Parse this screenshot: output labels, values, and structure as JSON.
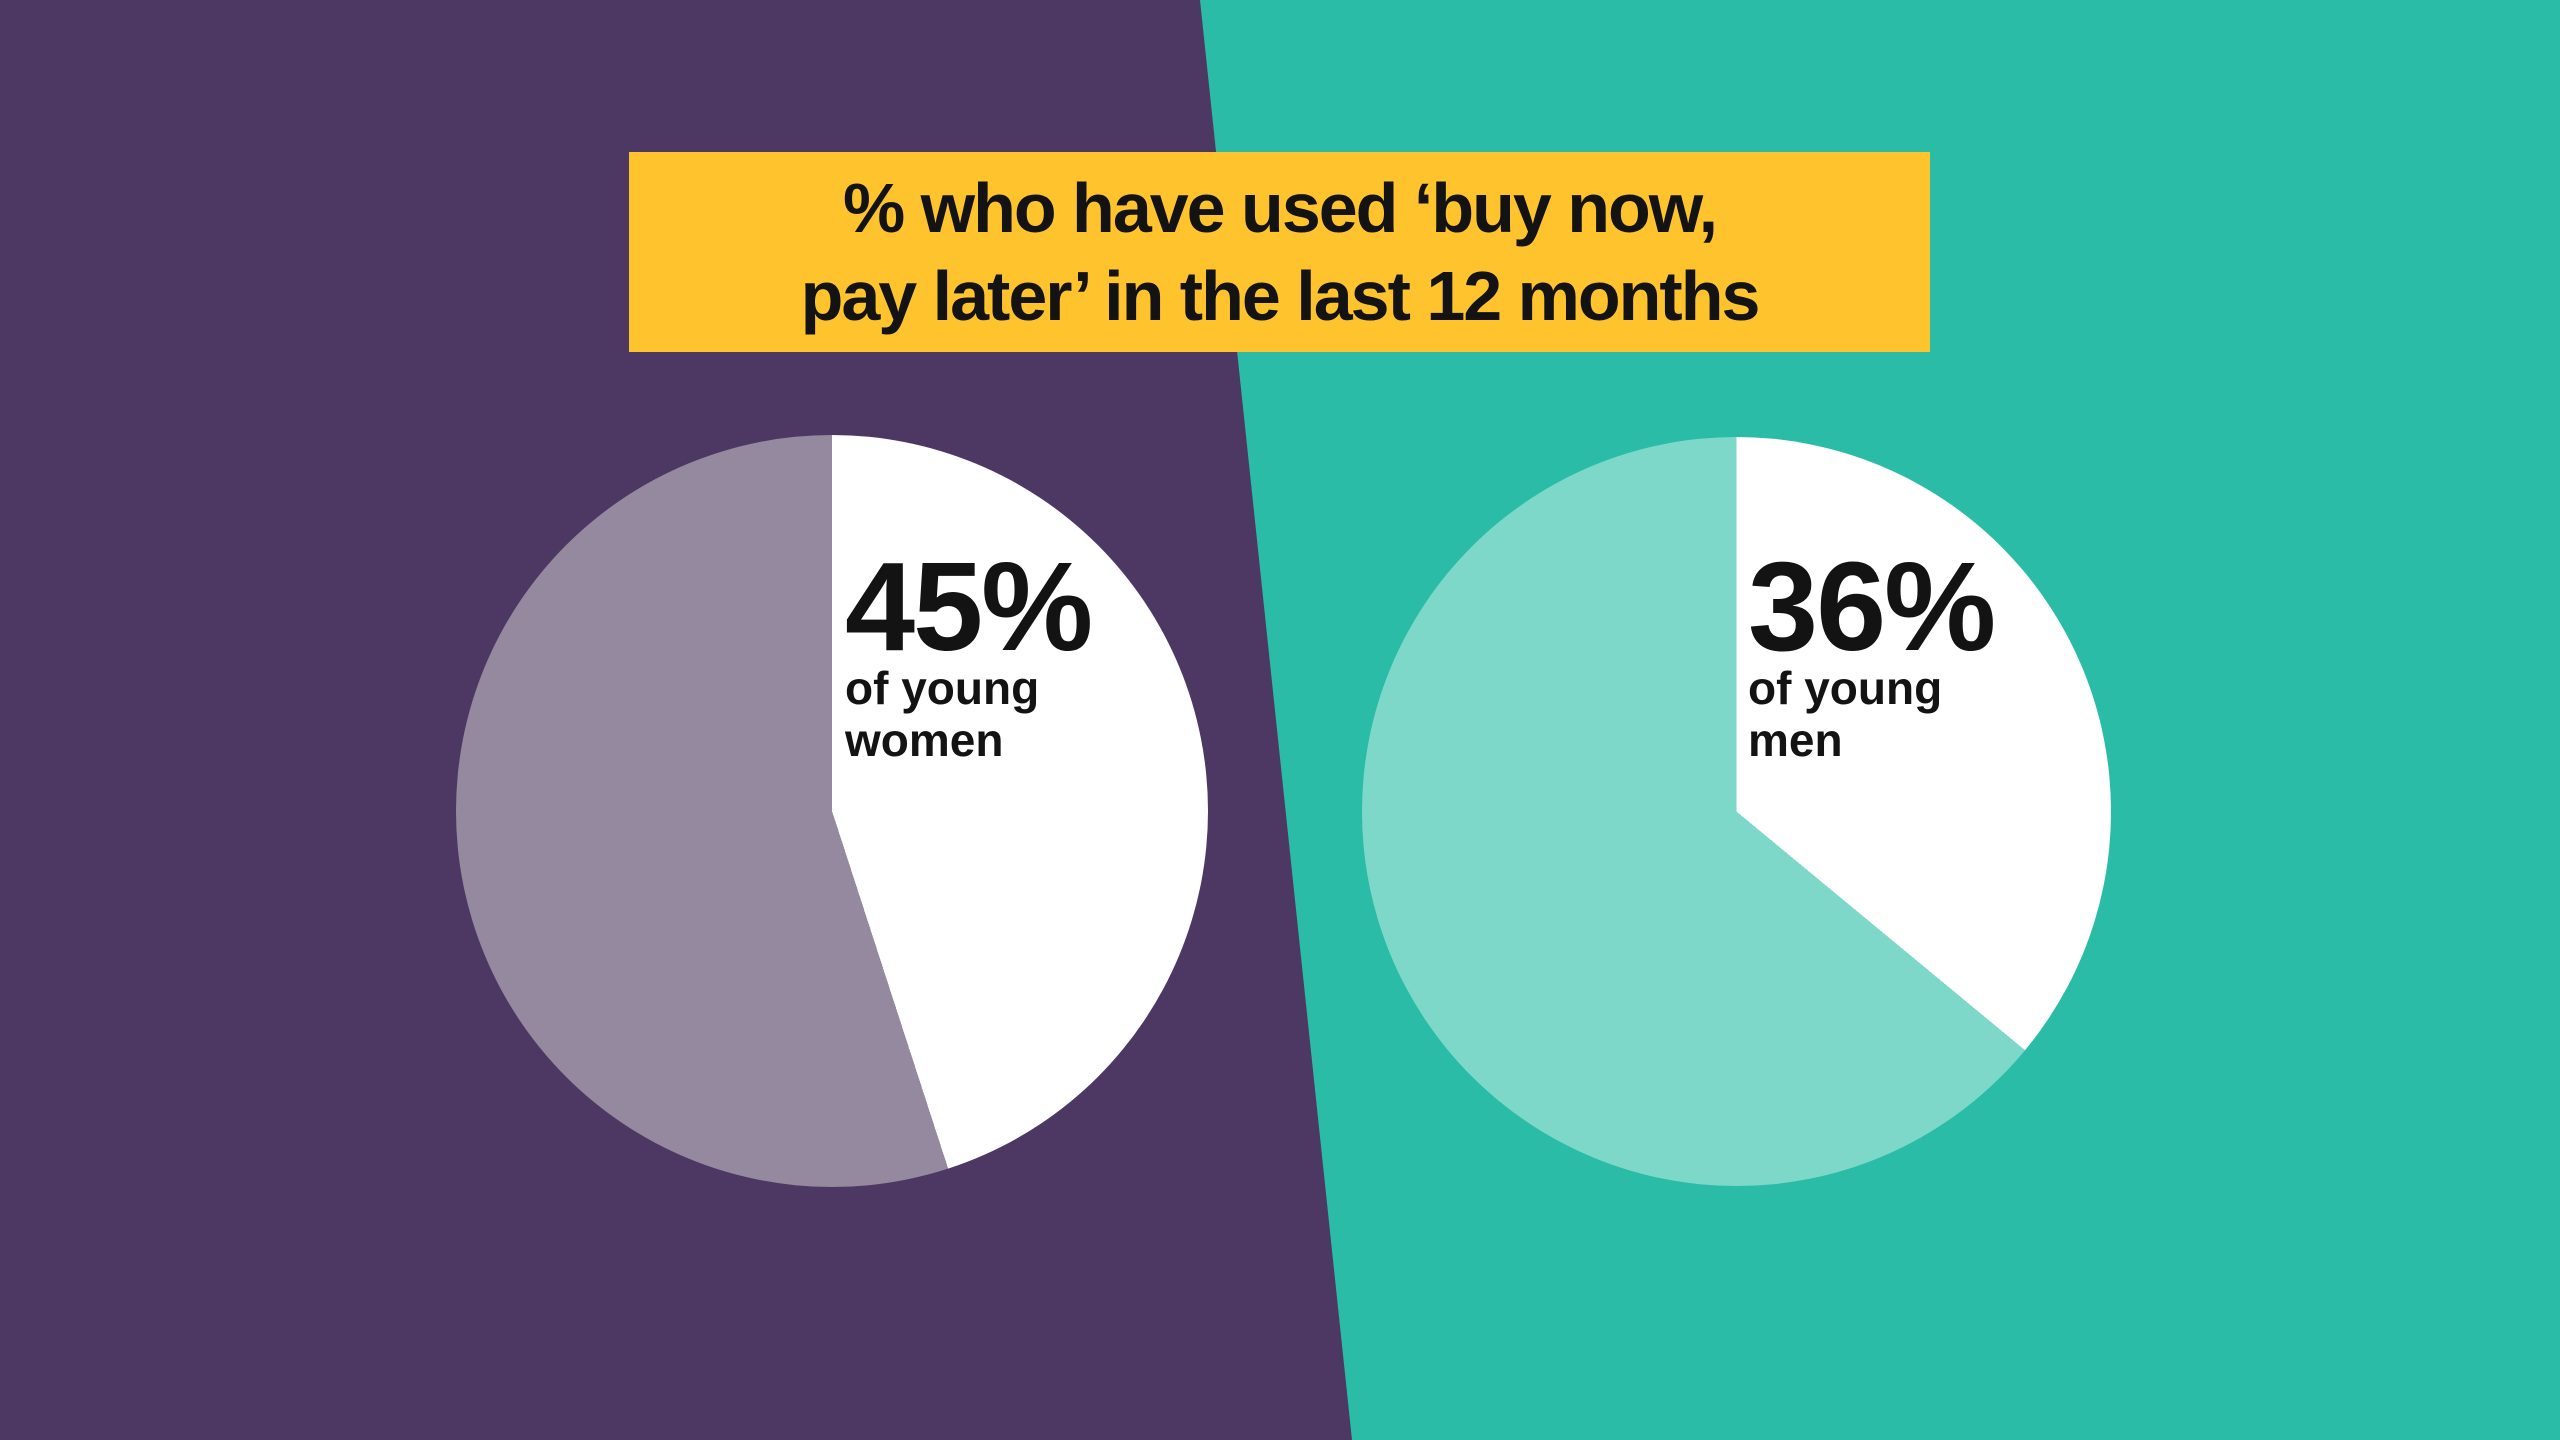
{
  "background": {
    "left_color": "#4d3863",
    "right_color": "#2abca6"
  },
  "title": {
    "line1": "% who have used ‘buy now,",
    "line2": "pay later’ in the last 12 months",
    "banner_color": "#fec32d",
    "text_color": "#131313"
  },
  "chart_data": [
    {
      "type": "pie",
      "title": "% who have used ‘buy now, pay later’ in the last 12 months",
      "big_label": "45%",
      "sub_label_lines": [
        "of young",
        "women"
      ],
      "value_pct": 45,
      "start_angle_deg": 0,
      "direction": "clockwise",
      "slices": [
        {
          "label": "45% of young women",
          "value": 45,
          "color": "#ffffff"
        },
        {
          "label": "remainder",
          "value": 55,
          "color": "#95899f"
        }
      ]
    },
    {
      "type": "pie",
      "title": "% who have used ‘buy now, pay later’ in the last 12 months",
      "big_label": "36%",
      "sub_label_lines": [
        "of young",
        "men"
      ],
      "value_pct": 36,
      "start_angle_deg": 0,
      "direction": "clockwise",
      "slices": [
        {
          "label": "36% of young men",
          "value": 36,
          "color": "#ffffff"
        },
        {
          "label": "remainder",
          "value": 64,
          "color": "#7ed8c9"
        }
      ]
    }
  ]
}
